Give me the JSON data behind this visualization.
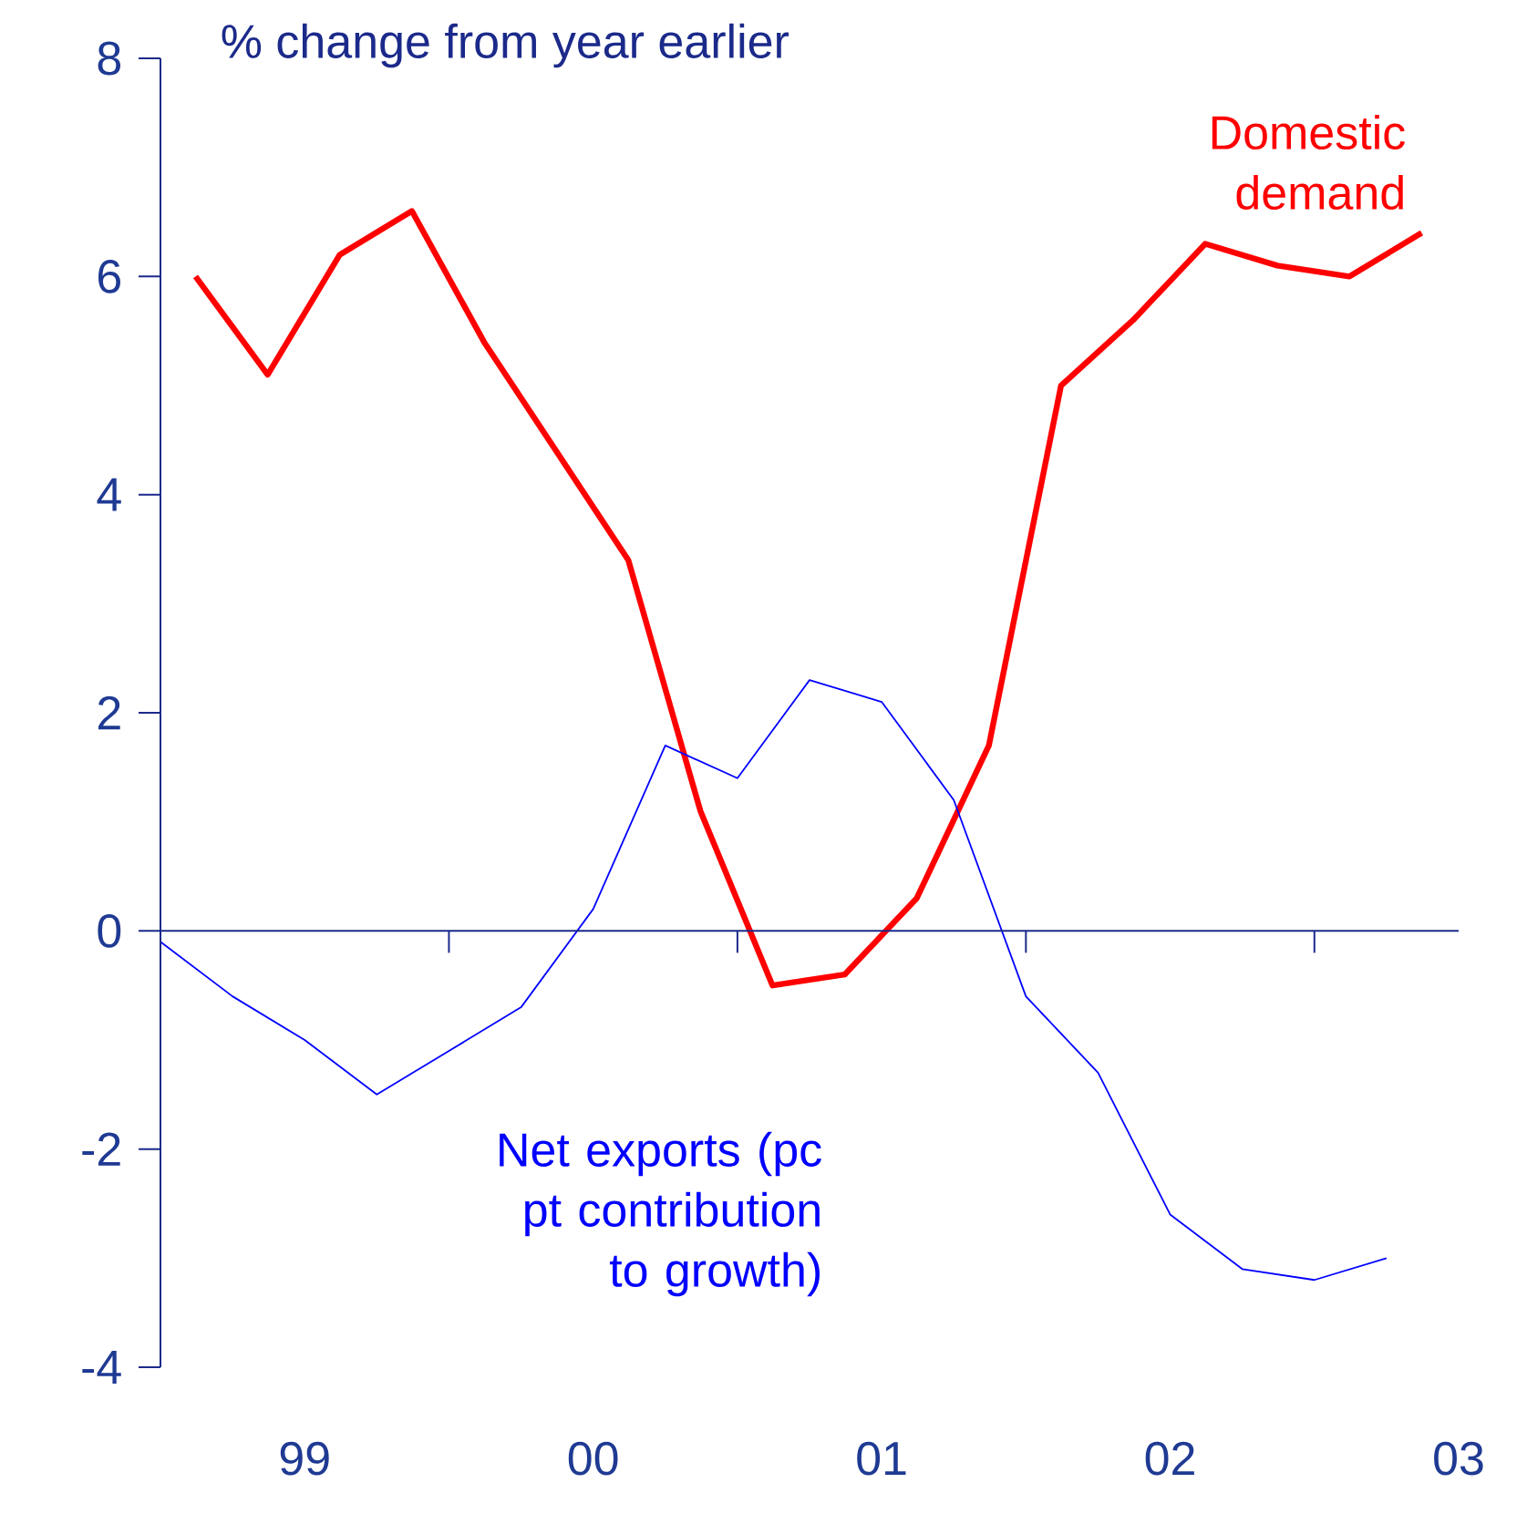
{
  "chart_data": {
    "type": "line",
    "annotations": [
      "% change from year earlier"
    ],
    "xlim": [
      "1999",
      "2003-07"
    ],
    "xticks": [
      {
        "value": "1999",
        "label": null
      },
      {
        "value": "1999-07",
        "label": "99"
      },
      {
        "value": "2000",
        "label": null
      },
      {
        "value": "2000-07",
        "label": "00"
      },
      {
        "value": "2001",
        "label": null
      },
      {
        "value": "2001-07",
        "label": "01"
      },
      {
        "value": "2002",
        "label": null
      },
      {
        "value": "2002-07",
        "label": "02"
      },
      {
        "value": "2003",
        "label": null
      },
      {
        "value": "2003-07",
        "label": "03"
      }
    ],
    "ref_lines": [
      {
        "axis": "y",
        "value": 0,
        "color": "#1b2a8a"
      }
    ],
    "ylim": [
      -4,
      8
    ],
    "yticks": [
      -4,
      -2,
      0,
      2,
      4,
      6,
      8
    ],
    "series": [
      {
        "name": "Domestic demand",
        "color": "#ff0000",
        "x": [
          "1999-02-15",
          "1999-05-15",
          "1999-08-15",
          "1999-11-15",
          "2000-02-15",
          "2000-05-15",
          "2000-08-15",
          "2000-11-15",
          "2001-02-15",
          "2001-05-15",
          "2001-08-15",
          "2001-11-15",
          "2002-02-15",
          "2002-05-15",
          "2002-08-15",
          "2002-11-15",
          "2003-02-15",
          "2003-05-15"
        ],
        "values": [
          6.0,
          5.1,
          6.2,
          6.6,
          5.4,
          4.4,
          3.4,
          1.1,
          -0.5,
          -0.4,
          0.3,
          1.7,
          5.0,
          5.6,
          6.3,
          6.1,
          6.0,
          6.4
        ]
      },
      {
        "name": "Net exports (pc pt contribution to growth)",
        "color": "#0000ff",
        "x": [
          "1999-01",
          "1999-04",
          "1999-07",
          "1999-10",
          "2000-01",
          "2000-04",
          "2000-07",
          "2000-10",
          "2001-01",
          "2001-04",
          "2001-07",
          "2001-10",
          "2002-01",
          "2002-04",
          "2002-07",
          "2002-10",
          "2003-01",
          "2003-04"
        ],
        "values": [
          -0.1,
          -0.6,
          -1.0,
          -1.5,
          -1.1,
          -0.7,
          0.2,
          1.7,
          1.4,
          2.3,
          2.1,
          1.2,
          -0.6,
          -1.3,
          -2.6,
          -3.1,
          -3.2,
          -3.0
        ]
      }
    ]
  }
}
